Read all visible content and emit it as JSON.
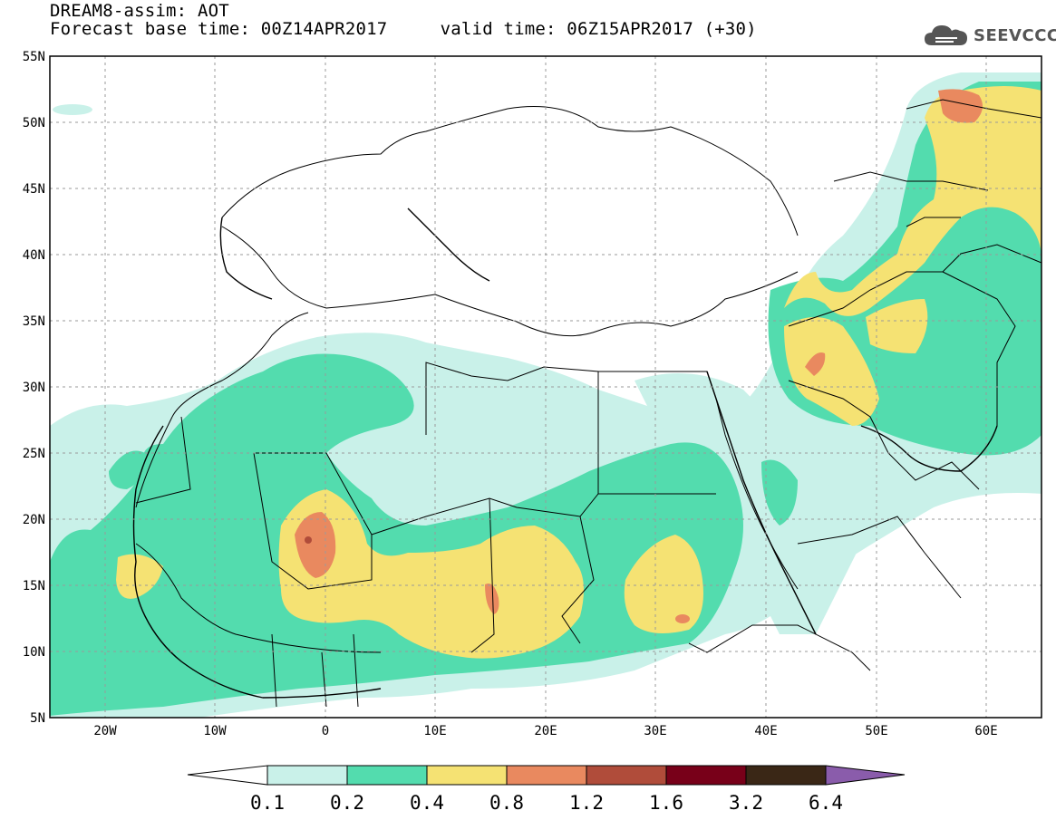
{
  "header": {
    "line1": "DREAM8-assim: AOT",
    "line2": "Forecast base time: 00Z14APR2017     valid time: 06Z15APR2017 (+30)"
  },
  "logo": {
    "text": "SEEVCCC",
    "icon": "cloud-logo-icon"
  },
  "map": {
    "lat_ticks": [
      "55N",
      "50N",
      "45N",
      "40N",
      "35N",
      "30N",
      "25N",
      "20N",
      "15N",
      "10N",
      "5N"
    ],
    "lon_ticks": [
      "20W",
      "10W",
      "0",
      "10E",
      "20E",
      "30E",
      "40E",
      "50E",
      "60E"
    ],
    "lon_range": [
      -25,
      65
    ],
    "lat_range": [
      5,
      55
    ]
  },
  "colorbar": {
    "labels": [
      "0.1",
      "0.2",
      "0.4",
      "0.8",
      "1.2",
      "1.6",
      "3.2",
      "6.4"
    ],
    "colors": [
      "#ffffff",
      "#c9f1e9",
      "#53dcae",
      "#f5e273",
      "#e9895f",
      "#b04c3a",
      "#780019",
      "#3a2716",
      "#8a5cab"
    ]
  }
}
